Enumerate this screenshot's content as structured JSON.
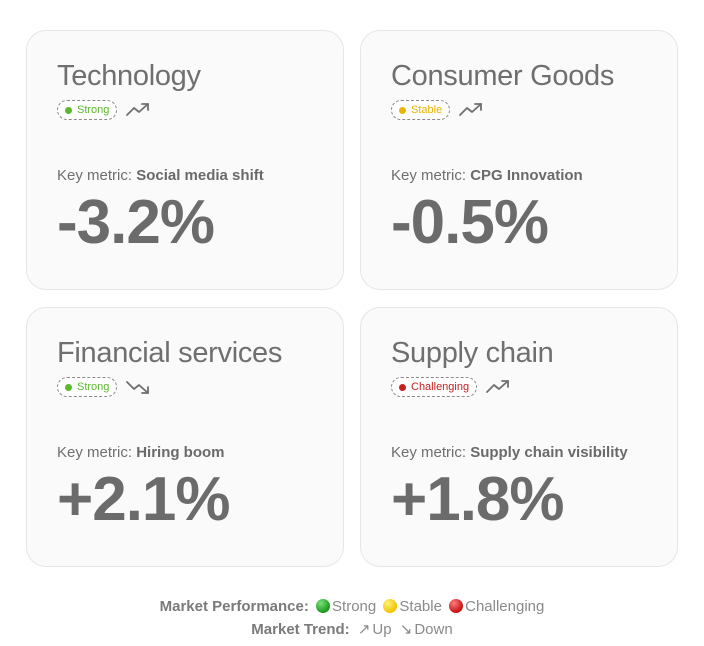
{
  "colors": {
    "strong": "#5cb82e",
    "stable": "#e9b400",
    "challenging": "#c42020",
    "trend_icon": "#6f6f6f"
  },
  "cards": [
    {
      "title": "Technology",
      "status": "Strong",
      "status_color": "#5cb82e",
      "trend": "up",
      "trend_icon": "trend-up-icon",
      "metric_label": "Key metric: ",
      "metric_name": "Social media shift",
      "value": "-3.2%"
    },
    {
      "title": "Consumer Goods",
      "status": "Stable",
      "status_color": "#e9b400",
      "trend": "up",
      "trend_icon": "trend-up-icon",
      "metric_label": "Key metric: ",
      "metric_name": "CPG Innovation",
      "value": "-0.5%"
    },
    {
      "title": "Financial services",
      "status": "Strong",
      "status_color": "#5cb82e",
      "trend": "down",
      "trend_icon": "trend-down-icon",
      "metric_label": "Key metric: ",
      "metric_name": "Hiring boom",
      "value": "+2.1%"
    },
    {
      "title": "Supply chain",
      "status": "Challenging",
      "status_color": "#c42020",
      "trend": "up",
      "trend_icon": "trend-up-icon",
      "metric_label": "Key metric: ",
      "metric_name": "Supply chain visibility",
      "value": "+1.8%"
    }
  ],
  "legend": {
    "performance_label": "Market Performance:",
    "strong": "Strong",
    "stable": "Stable",
    "challenging": "Challenging",
    "trend_label": "Market Trend:",
    "up_glyph": "↗",
    "up": "Up",
    "down_glyph": "↘",
    "down": "Down"
  }
}
